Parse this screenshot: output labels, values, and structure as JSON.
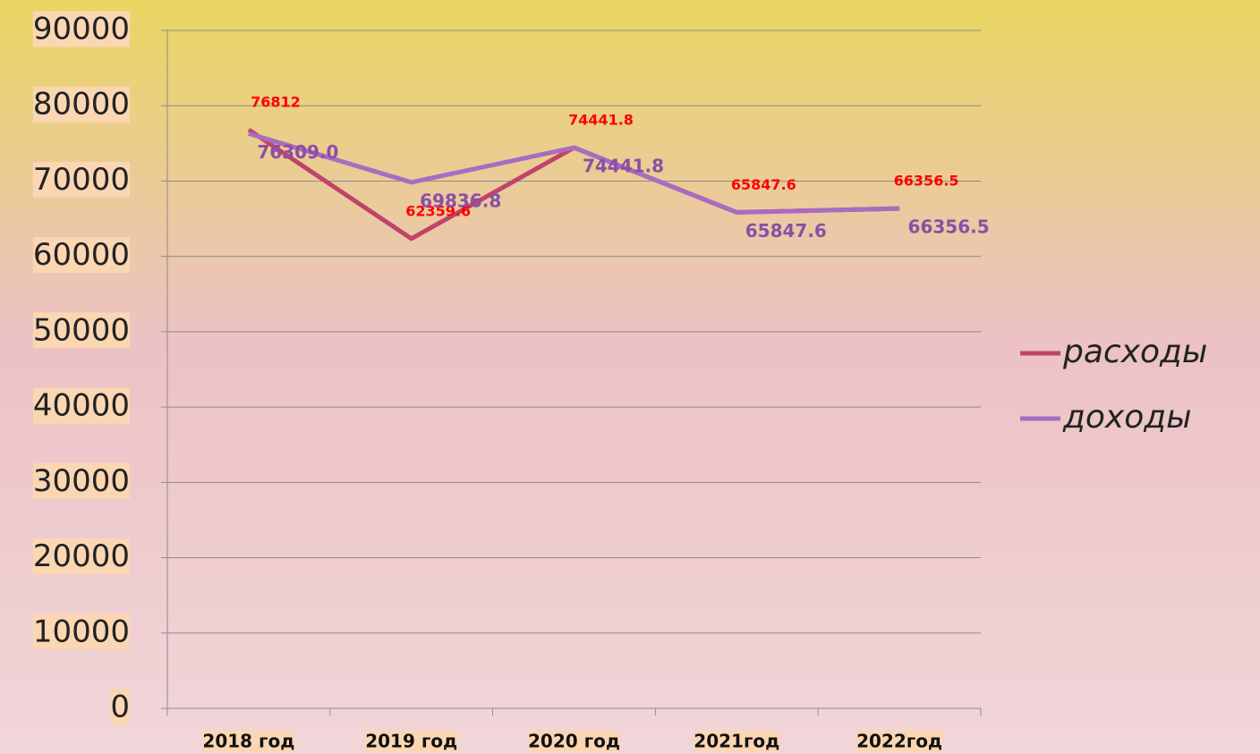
{
  "chart_data": {
    "type": "line",
    "categories": [
      "2018 год",
      "2019 год",
      "2020 год",
      "2021год",
      "2022год"
    ],
    "series": [
      {
        "name": "расходы",
        "color": "#c0436a",
        "label_color": "#ff0000",
        "values": [
          76812,
          62359.6,
          74441.8,
          65847.6,
          66356.5
        ]
      },
      {
        "name": "доходы",
        "color": "#a86cc1",
        "label_color": "#8a4fa6",
        "values": [
          76309.0,
          69836.8,
          74441.8,
          65847.6,
          66356.5
        ],
        "value_labels": [
          "76309.0",
          "69836.8",
          "74441.8",
          "65847.6",
          "66356.5"
        ]
      }
    ],
    "ylim": [
      0,
      90000
    ],
    "yticks": [
      0,
      10000,
      20000,
      30000,
      40000,
      50000,
      60000,
      70000,
      80000,
      90000
    ],
    "grid": true,
    "legend": "right"
  }
}
